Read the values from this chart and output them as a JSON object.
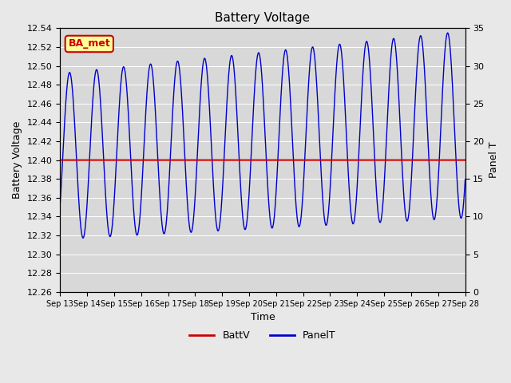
{
  "title": "Battery Voltage",
  "xlabel": "Time",
  "ylabel_left": "Battery Voltage",
  "ylabel_right": "Panel T",
  "ylim_left": [
    12.26,
    12.54
  ],
  "ylim_right": [
    0,
    35
  ],
  "x_tick_labels": [
    "Sep 13",
    "Sep 14",
    "Sep 15",
    "Sep 16",
    "Sep 17",
    "Sep 18",
    "Sep 19",
    "Sep 20",
    "Sep 21",
    "Sep 22",
    "Sep 23",
    "Sep 24",
    "Sep 25",
    "Sep 26",
    "Sep 27",
    "Sep 28"
  ],
  "battv_value": 12.4,
  "battv_color": "#cc0000",
  "panelt_color": "#0000cc",
  "background_color": "#e8e8e8",
  "plot_bg_color": "#d8d8d8",
  "legend_battv": "BattV",
  "legend_panelt": "PanelT",
  "annotation_text": "BA_met",
  "annotation_color": "#cc0000",
  "annotation_bg": "#ffff99"
}
